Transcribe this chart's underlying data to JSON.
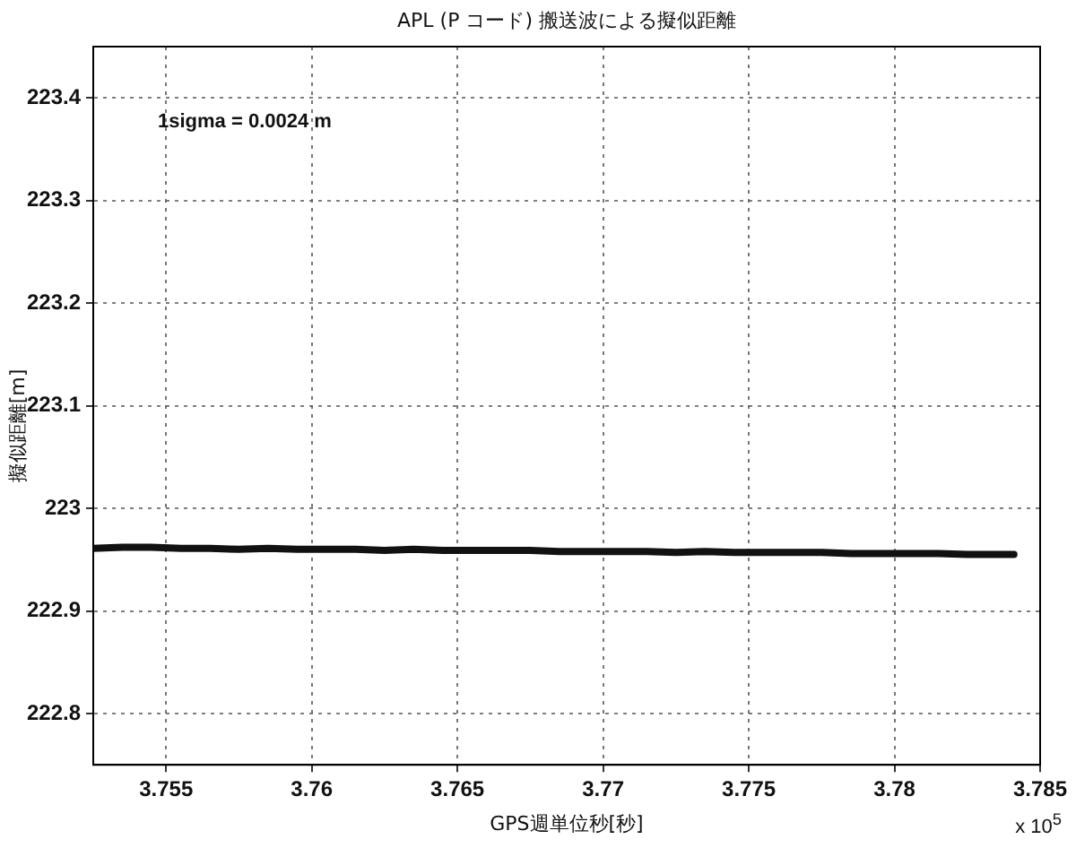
{
  "chart_data": {
    "type": "line",
    "title": "APL (P コード) 搬送波による擬似距離",
    "xlabel": "GPS週単位秒[秒]",
    "ylabel": "擬似距離[m]",
    "annotations": [
      "1sigma = 0.0024 m",
      "x 10$^{5}$"
    ],
    "x": [
      3.7525,
      3.7535,
      3.7545,
      3.7555,
      3.7565,
      3.7575,
      3.7585,
      3.7595,
      3.7605,
      3.7615,
      3.7625,
      3.7635,
      3.7645,
      3.7655,
      3.7665,
      3.7675,
      3.7685,
      3.7695,
      3.7705,
      3.7715,
      3.7725,
      3.7735,
      3.7745,
      3.7755,
      3.7765,
      3.7775,
      3.7785,
      3.7795,
      3.7805,
      3.7815,
      3.7825,
      3.7835,
      3.7841
    ],
    "series": [
      {
        "color": "#111111",
        "values": [
          222.961,
          222.962,
          222.962,
          222.961,
          222.961,
          222.96,
          222.961,
          222.96,
          222.96,
          222.96,
          222.959,
          222.96,
          222.959,
          222.959,
          222.959,
          222.959,
          222.958,
          222.958,
          222.958,
          222.958,
          222.957,
          222.958,
          222.957,
          222.957,
          222.957,
          222.957,
          222.956,
          222.956,
          222.956,
          222.956,
          222.955,
          222.955,
          222.955
        ]
      }
    ],
    "xlim": [
      3.7525,
      3.785
    ],
    "ylim": [
      222.75,
      223.45
    ],
    "xticks": [
      3.755,
      3.76,
      3.765,
      3.77,
      3.775,
      3.78,
      3.785
    ],
    "yticks": [
      222.8,
      222.9,
      {
        "value": 223,
        "label": "223"
      },
      223.1,
      223.2,
      223.3,
      223.4
    ],
    "grid": true,
    "legend": false,
    "marker": "none",
    "line_style": "solid"
  }
}
